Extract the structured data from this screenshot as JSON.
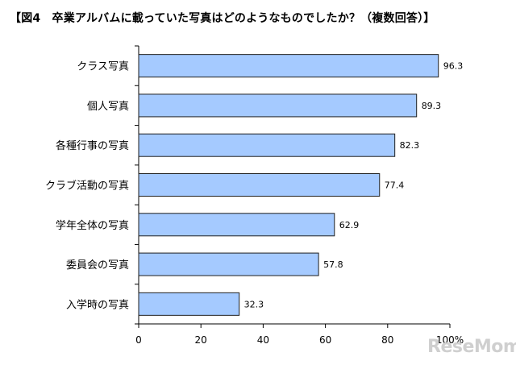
{
  "title": "【図4　卒業アルバムに載っていた写真はどのようなものでしたか？（複数回答）】",
  "watermark": "ReseMom",
  "colors": {
    "bar_fill": "#a5caff",
    "bar_stroke": "#1f1f1f"
  },
  "chart_data": {
    "type": "bar",
    "orientation": "horizontal",
    "title": "【図4　卒業アルバムに載っていた写真はどのようなものでしたか？（複数回答）】",
    "categories": [
      "クラス写真",
      "個人写真",
      "各種行事の写真",
      "クラブ活動の写真",
      "学年全体の写真",
      "委員会の写真",
      "入学時の写真"
    ],
    "values": [
      96.3,
      89.3,
      82.3,
      77.4,
      62.9,
      57.8,
      32.3
    ],
    "value_labels": [
      "96.3",
      "89.3",
      "82.3",
      "77.4",
      "62.9",
      "57.8",
      "32.3"
    ],
    "xlim": [
      0,
      100
    ],
    "x_ticks": [
      0,
      20,
      40,
      60,
      80,
      100
    ],
    "x_tick_labels": [
      "0",
      "20",
      "40",
      "60",
      "80",
      "100%"
    ],
    "grid": false,
    "legend": "none"
  }
}
